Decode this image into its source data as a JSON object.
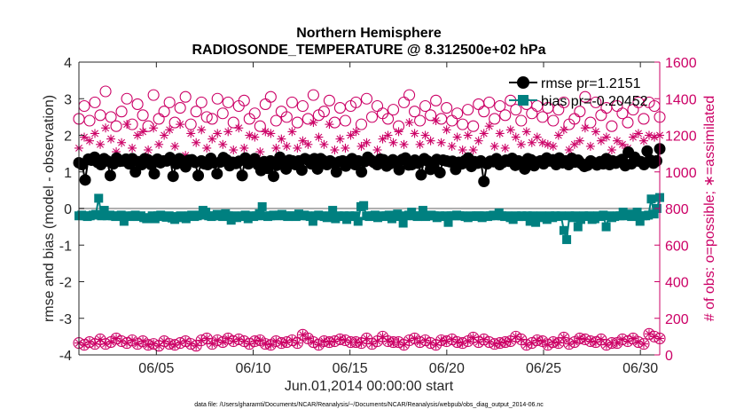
{
  "chart_data": {
    "type": "line",
    "title": "Northern Hemisphere",
    "subtitle": "RADIOSONDE_TEMPERATURE @ 8.312500e+02 hPa",
    "xlabel": "Jun.01,2014 00:00:00 start",
    "ylabel_left": "rmse and bias (model - observation)",
    "ylabel_right": "# of obs: o=possible; ∗=assimilated",
    "footnote": "data file: /Users/gharamti/Documents/NCAR/Reanalysis/~/Documents/NCAR/Reanalysis/webpub/obs_diag_output_2014-06.nc",
    "xlim": [
      1,
      31
    ],
    "ylim_left": [
      -4,
      4
    ],
    "ylim_right": [
      0,
      1600
    ],
    "x_ticks": [
      5,
      10,
      15,
      20,
      25,
      30
    ],
    "x_tick_labels": [
      "06/05",
      "06/10",
      "06/15",
      "06/20",
      "06/25",
      "06/30"
    ],
    "y_left_ticks": [
      4,
      3,
      2,
      1,
      0,
      -1,
      -2,
      -3,
      -4
    ],
    "y_left_tick_labels": [
      "4",
      "3",
      "2",
      "1",
      "0",
      "-1",
      "-2",
      "-3",
      "-4"
    ],
    "y_right_ticks": [
      1600,
      1400,
      1200,
      1000,
      800,
      600,
      400,
      200,
      0
    ],
    "y_right_tick_labels": [
      "1600",
      "1400",
      "1200",
      "1000",
      "800",
      "600",
      "400",
      "200",
      "0"
    ],
    "legend": [
      {
        "name": "rmse pr=1.2151",
        "marker": "circle",
        "color": "#000000"
      },
      {
        "name": "bias pr=-0.20452",
        "marker": "square",
        "color": "#008080"
      }
    ],
    "legend_location": "top-right",
    "colors": {
      "rmse": "#000000",
      "bias": "#008080",
      "obs": "#cc0066",
      "zero_line": "#b0b0b0"
    },
    "series": [
      {
        "name": "rmse",
        "axis": "left",
        "values": [
          1.25,
          1.2,
          0.78,
          1.35,
          1.32,
          1.4,
          1.26,
          1.2,
          1.36,
          1.3,
          0.9,
          1.22,
          1.38,
          1.29,
          1.3,
          1.35,
          1.22,
          1.36,
          1.0,
          1.28,
          1.2,
          1.36,
          1.33,
          1.2,
          0.95,
          1.35,
          1.25,
          1.3,
          1.3,
          1.39,
          0.88,
          1.22,
          1.36,
          1.29,
          1.14,
          1.32,
          1.33,
          1.26,
          0.9,
          1.3,
          1.22,
          1.2,
          1.37,
          1.25,
          0.95,
          1.27,
          1.39,
          1.33,
          1.17,
          1.26,
          1.23,
          1.29,
          0.9,
          1.38,
          1.22,
          1.3,
          1.36,
          1.2,
          1.04,
          1.28,
          1.1,
          1.3,
          0.88,
          1.18,
          1.4,
          1.23,
          1.08,
          1.32,
          1.3,
          1.2,
          1.3,
          1.05,
          1.36,
          1.32,
          1.22,
          1.36,
          1.08,
          1.36,
          1.3,
          1.2,
          1.3,
          1.25,
          1.0,
          1.28,
          1.3,
          1.16,
          1.29,
          1.36,
          1.2,
          1.3,
          1.0,
          1.28,
          1.4,
          1.32,
          1.26,
          1.2,
          1.35,
          1.33,
          1.16,
          1.22,
          1.33,
          1.28,
          1.06,
          1.34,
          1.38,
          1.19,
          1.2,
          1.32,
          1.24,
          0.92,
          1.36,
          1.3,
          1.07,
          1.16,
          1.34,
          0.98,
          1.32,
          1.3,
          1.28,
          1.29,
          1.07,
          1.26,
          1.22,
          1.31,
          1.38,
          1.15,
          1.28,
          1.24,
          1.3,
          0.74,
          1.22,
          1.29,
          1.28,
          1.36,
          1.2,
          1.26,
          1.32,
          1.29,
          1.37,
          1.18,
          1.3,
          1.26,
          1.08,
          1.36,
          1.33,
          1.17,
          1.27,
          1.3,
          1.22,
          1.38,
          1.3,
          1.33,
          1.2,
          1.38,
          1.25,
          1.3,
          1.2,
          1.37,
          1.27,
          1.32,
          1.23,
          1.15,
          1.18,
          1.3,
          1.25,
          1.19,
          1.28,
          1.22,
          1.36,
          1.2,
          1.3,
          1.24,
          1.29,
          1.34,
          1.17,
          1.54,
          1.22,
          1.4,
          1.3,
          1.28,
          1.2,
          1.57,
          1.32,
          1.24,
          1.3,
          1.63
        ]
      },
      {
        "name": "bias",
        "axis": "left",
        "values": [
          -0.2,
          -0.18,
          -0.2,
          -0.22,
          -0.2,
          -0.18,
          -0.16,
          0.28,
          -0.2,
          -0.05,
          -0.2,
          -0.18,
          -0.2,
          -0.22,
          -0.2,
          -0.18,
          -0.35,
          -0.2,
          -0.22,
          -0.2,
          -0.18,
          -0.22,
          -0.2,
          -0.25,
          -0.28,
          -0.25,
          -0.2,
          -0.28,
          -0.2,
          -0.18,
          -0.22,
          -0.24,
          -0.2,
          -0.26,
          -0.3,
          -0.22,
          -0.2,
          -0.25,
          -0.28,
          -0.2,
          -0.18,
          -0.22,
          -0.2,
          -0.18,
          -0.05,
          -0.1,
          -0.2,
          -0.22,
          -0.2,
          -0.16,
          -0.2,
          -0.22,
          -0.14,
          -0.2,
          -0.32,
          -0.2,
          -0.25,
          -0.22,
          -0.2,
          -0.18,
          -0.28,
          -0.2,
          -0.22,
          -0.2,
          -0.14,
          0.05,
          -0.2,
          -0.22,
          -0.2,
          -0.18,
          -0.2,
          -0.18,
          -0.16,
          -0.2,
          -0.22,
          -0.2,
          -0.2,
          -0.22,
          -0.15,
          -0.2,
          -0.18,
          -0.2,
          -0.22,
          -0.35,
          -0.2,
          -0.18,
          -0.2,
          -0.22,
          -0.25,
          -0.2,
          -0.05,
          -0.28,
          -0.2,
          -0.22,
          -0.2,
          -0.3,
          -0.2,
          -0.22,
          -0.2,
          -0.35,
          0.05,
          0.08,
          -0.2,
          -0.22,
          -0.2,
          -0.18,
          -0.25,
          -0.2,
          -0.22,
          -0.2,
          -0.18,
          -0.28,
          -0.2,
          -0.15,
          -0.22,
          -0.4,
          -0.2,
          -0.18,
          -0.1,
          -0.2,
          -0.22,
          -0.2,
          -0.05,
          -0.22,
          -0.2,
          -0.18,
          -0.2,
          -0.25,
          -0.2,
          -0.22,
          -0.2,
          -0.38,
          -0.2,
          -0.2,
          -0.18,
          -0.2,
          -0.2,
          -0.22,
          -0.25,
          -0.2,
          -0.22,
          -0.2,
          -0.2,
          -0.25,
          -0.2,
          -0.22,
          -0.2,
          -0.18,
          -0.2,
          -0.12,
          -0.2,
          -0.22,
          -0.2,
          -0.25,
          -0.3,
          -0.2,
          -0.22,
          -0.2,
          -0.22,
          -0.2,
          -0.35,
          -0.2,
          -0.38,
          -0.25,
          -0.2,
          -0.22,
          -0.3,
          -0.2,
          -0.25,
          -0.2,
          -0.22,
          -0.2,
          -0.6,
          -0.85,
          -0.2,
          -0.25,
          -0.2,
          -0.5,
          -0.3,
          -0.2,
          -0.22,
          -0.2,
          -0.3,
          -0.28,
          -0.2,
          -0.22,
          -0.18,
          -0.5,
          -0.2,
          -0.25,
          -0.22,
          -0.2,
          -0.2,
          -0.1,
          -0.2,
          -0.15,
          -0.22,
          -0.2,
          -0.1,
          -0.35,
          -0.2,
          -0.2,
          -0.18,
          0.26,
          -0.15,
          0.0,
          0.3
        ]
      },
      {
        "name": "possible",
        "axis": "right",
        "values": [
          1290,
          1360,
          1280,
          1380,
          1310,
          1440,
          1300,
          1250,
          1330,
          1400,
          1260,
          1370,
          1310,
          1250,
          1420,
          1290,
          1330,
          1380,
          1270,
          1350,
          1410,
          1260,
          1330,
          1380,
          1300,
          1290,
          1400,
          1320,
          1380,
          1270,
          1360,
          1390,
          1290,
          1320,
          1250,
          1370,
          1410,
          1280,
          1330,
          1300,
          1380,
          1270,
          1360,
          1290,
          1420,
          1310,
          1330,
          1390,
          1270,
          1350,
          1280,
          1360,
          1380,
          1260,
          1400,
          1300,
          1360,
          1320,
          1290,
          1340,
          1250,
          1380,
          1420,
          1330,
          1280,
          1360,
          1310,
          1390,
          1290,
          1350,
          1280,
          1320,
          1260,
          1340,
          1250,
          1370,
          1330,
          1380,
          1290,
          1360,
          1310,
          1390,
          1340,
          1280,
          1370,
          1320,
          1360,
          1300,
          1350,
          1280,
          1340,
          1380,
          1260,
          1290,
          1330,
          1410,
          1270,
          1380,
          1310,
          1350,
          1250,
          1360,
          1320,
          1270,
          1340,
          1380,
          1290,
          1380,
          1360,
          1300
        ]
      },
      {
        "name": "assimilated",
        "axis": "right",
        "values": [
          1130,
          1190,
          1170,
          1210,
          1150,
          1240,
          1180,
          1110,
          1160,
          1260,
          1130,
          1200,
          1220,
          1120,
          1240,
          1150,
          1200,
          1230,
          1140,
          1260,
          1090,
          1210,
          1160,
          1230,
          1130,
          1180,
          1210,
          1150,
          1220,
          1120,
          1240,
          1130,
          1200,
          1190,
          1110,
          1220,
          1210,
          1130,
          1180,
          1140,
          1220,
          1130,
          1170,
          1150,
          1270,
          1190,
          1150,
          1260,
          1120,
          1180,
          1130,
          1200,
          1220,
          1140,
          1160,
          1050,
          1120,
          1180,
          1200,
          1160,
          1220,
          1150,
          1270,
          1210,
          1150,
          1200,
          1170,
          1280,
          1160,
          1230,
          1140,
          1190,
          1120,
          1200,
          1120,
          1170,
          1210,
          1250,
          1140,
          1210,
          1130,
          1230,
          1190,
          1150,
          1220,
          1160,
          1190,
          1160,
          1150,
          1140,
          1200,
          1230,
          1120,
          1150,
          1170,
          1240,
          1140,
          1220,
          1170,
          1190,
          1120,
          1170,
          1150,
          1130,
          1190,
          1210,
          1170,
          1200,
          1190,
          1200
        ]
      },
      {
        "name": "low_possible",
        "axis": "right",
        "values": [
          65,
          55,
          70,
          60,
          85,
          60,
          70,
          90,
          75,
          65,
          80,
          60,
          75,
          55,
          60,
          50,
          75,
          60,
          55,
          65,
          75,
          60,
          50,
          80,
          90,
          60,
          80,
          70,
          90,
          75,
          85,
          75,
          60,
          75,
          80,
          60,
          55,
          75,
          65,
          70,
          80,
          65,
          110,
          90,
          70,
          55,
          75,
          70,
          75,
          85,
          80,
          70,
          70,
          65,
          90,
          60,
          75,
          100,
          75,
          70,
          70,
          55,
          80,
          90,
          70,
          80,
          65,
          55,
          80,
          75,
          85,
          70,
          65,
          75,
          95,
          70,
          85,
          70,
          60,
          65,
          70,
          75,
          100,
          85,
          55,
          65,
          80,
          75,
          55,
          70,
          65,
          95,
          60,
          70,
          90,
          85,
          75,
          70,
          85,
          55,
          65,
          65,
          85,
          75,
          90,
          70,
          60,
          115,
          100,
          90
        ]
      },
      {
        "name": "low_assimilated",
        "axis": "right",
        "values": [
          65,
          55,
          70,
          60,
          85,
          60,
          70,
          90,
          75,
          65,
          80,
          60,
          75,
          55,
          60,
          50,
          75,
          60,
          55,
          65,
          75,
          60,
          50,
          80,
          90,
          60,
          80,
          70,
          90,
          75,
          85,
          75,
          60,
          75,
          80,
          60,
          55,
          75,
          65,
          70,
          80,
          65,
          110,
          90,
          70,
          55,
          75,
          70,
          75,
          85,
          80,
          70,
          70,
          65,
          90,
          60,
          75,
          100,
          75,
          70,
          70,
          55,
          80,
          90,
          70,
          80,
          65,
          55,
          80,
          75,
          85,
          70,
          65,
          75,
          95,
          70,
          85,
          70,
          60,
          65,
          70,
          75,
          100,
          85,
          55,
          65,
          80,
          75,
          55,
          70,
          65,
          95,
          60,
          70,
          90,
          85,
          75,
          70,
          85,
          55,
          65,
          65,
          85,
          75,
          90,
          70,
          60,
          115,
          100,
          90
        ]
      }
    ]
  }
}
